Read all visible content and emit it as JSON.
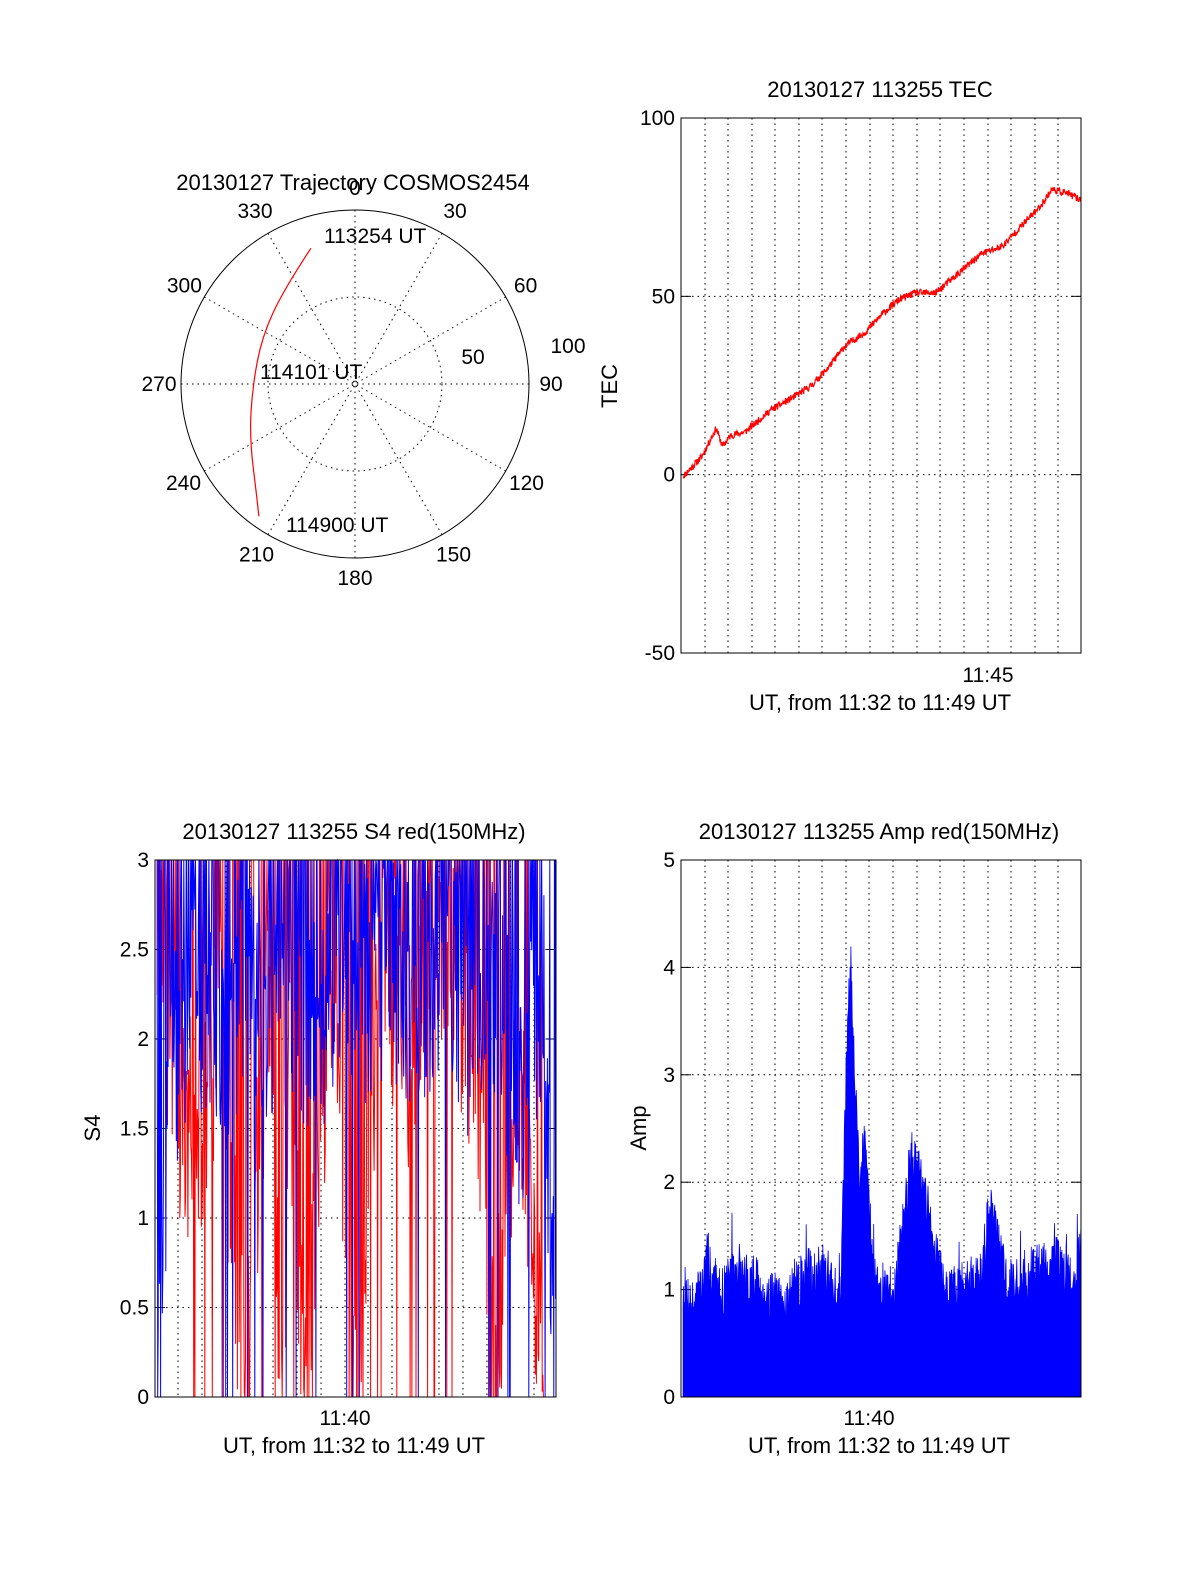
{
  "colors": {
    "red": "#ff0000",
    "blue": "#0000ff",
    "axis": "#000000",
    "background": "#ffffff"
  },
  "chart_data": [
    {
      "id": "trajectory",
      "type": "scatter",
      "projection": "polar",
      "title": "20130127 Trajectory COSMOS2454",
      "azimuth_labels": [
        "0",
        "30",
        "60",
        "90",
        "120",
        "150",
        "180",
        "210",
        "240",
        "270",
        "300",
        "330"
      ],
      "radial_labels": [
        "50",
        "100"
      ],
      "grid": true,
      "series": [
        {
          "color": "#ff0000",
          "points": [
            {
              "az": 342,
              "zenith": 82
            },
            {
              "az": 323,
              "zenith": 68
            },
            {
              "az": 297,
              "zenith": 60
            },
            {
              "az": 268,
              "zenith": 59
            },
            {
              "az": 243,
              "zenith": 68
            },
            {
              "az": 221,
              "zenith": 86
            },
            {
              "az": 216,
              "zenith": 94
            }
          ]
        }
      ],
      "annotations": [
        "113254 UT",
        "114101 UT",
        "114900 UT"
      ]
    },
    {
      "id": "tec",
      "type": "line",
      "title": "20130127 113255 TEC",
      "xlabel": "UT, from 11:32 to 11:49 UT",
      "ylabel": "TEC",
      "xlim": [
        "11:32:55",
        "11:49:00"
      ],
      "x_tick_labels": [
        "11:45"
      ],
      "ylim": [
        -50,
        100
      ],
      "y_ticks": [
        "100",
        "50",
        "0",
        "-50"
      ],
      "grid": true,
      "series": [
        {
          "color": "#ff0000",
          "x": [
            "11:33:00",
            "11:33:45",
            "11:34:20",
            "11:34:35",
            "11:34:55",
            "11:35:30",
            "11:36:30",
            "11:37:30",
            "11:38:10",
            "11:38:50",
            "11:39:30",
            "11:40:20",
            "11:41:00",
            "11:41:40",
            "11:42:20",
            "11:43:10",
            "11:44:00",
            "11:45:00",
            "11:45:50",
            "11:46:30",
            "11:47:20",
            "11:47:50",
            "11:48:25",
            "11:49:00"
          ],
          "values": [
            -0.5,
            5,
            13,
            8,
            11,
            12,
            18,
            22,
            25,
            30,
            36,
            40,
            45,
            49,
            51,
            51,
            56,
            62,
            64,
            69,
            75,
            80,
            79,
            77
          ]
        }
      ]
    },
    {
      "id": "s4",
      "type": "line",
      "title": "20130127 113255 S4 red(150MHz)",
      "xlabel": "UT, from 11:32 to 11:49 UT",
      "ylabel": "S4",
      "xlim": [
        "11:32:55",
        "11:49:00"
      ],
      "x_tick_labels": [
        "11:40"
      ],
      "ylim": [
        0,
        3
      ],
      "y_ticks": [
        "3",
        "2.5",
        "2",
        "1.5",
        "1",
        "0.5",
        "0"
      ],
      "grid": true,
      "series": [
        {
          "color": "#ff0000",
          "x": [
            "11:33:00",
            "11:34:00",
            "11:34:40",
            "11:35:30",
            "11:36:30",
            "11:37:30",
            "11:38:00",
            "11:38:20",
            "11:39:00",
            "11:40:00",
            "11:41:00",
            "11:42:00",
            "11:43:00",
            "11:44:00",
            "11:45:00",
            "11:46:00",
            "11:46:30",
            "11:47:30",
            "11:48:30"
          ],
          "values": [
            2.6,
            1.6,
            1.5,
            2.2,
            0.0,
            2.4,
            0.0,
            1.8,
            0.0,
            2.5,
            0.0,
            2.6,
            1.9,
            2.7,
            2.4,
            1.5,
            0.0,
            2.0,
            0.0
          ]
        },
        {
          "color": "#0000ff",
          "x": [
            "11:33:00",
            "11:33:30",
            "11:34:30",
            "11:35:30",
            "11:36:30",
            "11:37:30",
            "11:38:30",
            "11:39:30",
            "11:40:30",
            "11:41:30",
            "11:42:30",
            "11:43:30",
            "11:44:30",
            "11:45:30",
            "11:46:30",
            "11:47:30",
            "11:48:30",
            "11:49:00"
          ],
          "values": [
            0.0,
            1.9,
            2.2,
            2.0,
            2.4,
            2.1,
            2.3,
            1.9,
            2.5,
            2.3,
            2.4,
            2.2,
            2.6,
            2.1,
            2.4,
            1.7,
            2.3,
            0.0
          ]
        }
      ]
    },
    {
      "id": "amp",
      "type": "area",
      "title": "20130127 113255 Amp red(150MHz)",
      "xlabel": "UT, from 11:32 to 11:49 UT",
      "ylabel": "Amp",
      "xlim": [
        "11:32:55",
        "11:49:00"
      ],
      "x_tick_labels": [
        "11:40"
      ],
      "ylim": [
        0,
        5
      ],
      "y_ticks": [
        "5",
        "4",
        "3",
        "2",
        "1",
        "0"
      ],
      "grid": true,
      "series": [
        {
          "color": "#0000ff",
          "x": [
            "11:33:00",
            "11:33:30",
            "11:34:00",
            "11:34:30",
            "11:35:00",
            "11:36:00",
            "11:37:00",
            "11:38:00",
            "11:38:50",
            "11:39:20",
            "11:39:35",
            "11:39:45",
            "11:40:05",
            "11:40:20",
            "11:40:40",
            "11:41:30",
            "11:42:10",
            "11:42:40",
            "11:43:30",
            "11:44:30",
            "11:45:00",
            "11:45:20",
            "11:46:00",
            "11:47:00",
            "11:48:00",
            "11:48:40",
            "11:49:00"
          ],
          "values": [
            1.15,
            1.0,
            1.45,
            1.1,
            1.3,
            1.2,
            1.0,
            1.3,
            1.35,
            1.0,
            3.4,
            4.2,
            2.1,
            2.7,
            1.2,
            1.1,
            2.4,
            2.1,
            1.1,
            1.2,
            1.3,
            2.0,
            1.2,
            1.3,
            1.4,
            1.25,
            1.5
          ]
        }
      ]
    }
  ]
}
